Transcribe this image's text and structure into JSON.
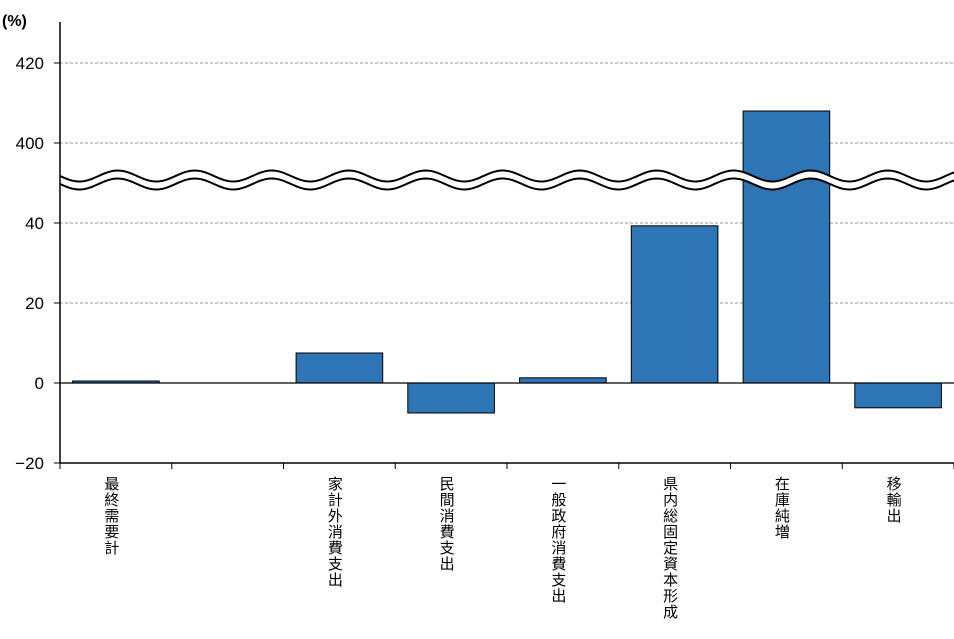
{
  "chart_data": {
    "type": "bar",
    "unit": "(%)",
    "title": "",
    "xlabel": "",
    "ylabel": "",
    "broken_axis": true,
    "y_ticks": [
      "420",
      "400",
      "40",
      "20",
      "0",
      "−20"
    ],
    "ylim_lower": [
      -20,
      40
    ],
    "ylim_upper": [
      400,
      420
    ],
    "grid": true,
    "bar_color": "#2e75b6",
    "categories": [
      "最終需要計",
      "",
      "家計外消費支出",
      "民間消費支出",
      "一般政府消費支出",
      "県内総固定資本形成",
      "在庫純増",
      "移輸出"
    ],
    "values": [
      0.5,
      0,
      7.5,
      -7.5,
      1.3,
      39.3,
      408,
      -6.2
    ]
  }
}
